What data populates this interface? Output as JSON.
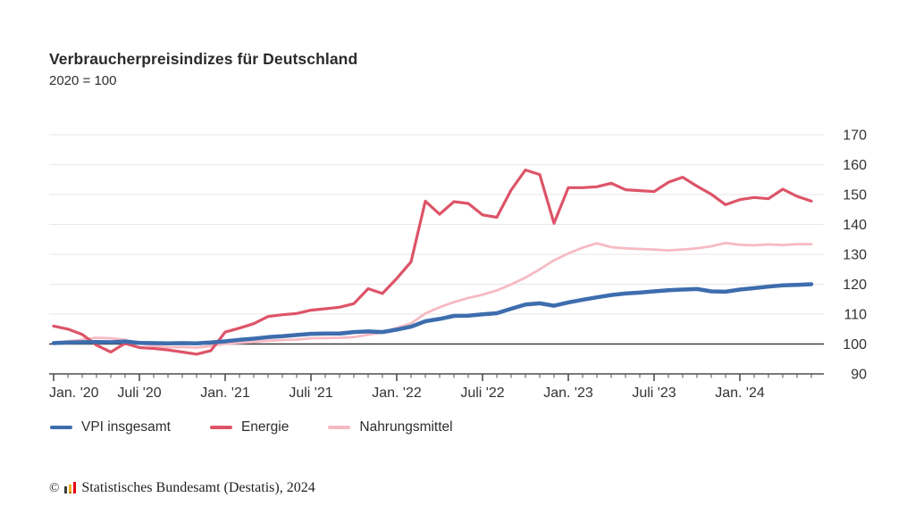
{
  "header": {
    "title": "Verbraucherpreisindizes für Deutschland",
    "subtitle": "2020 = 100"
  },
  "chart_data": {
    "type": "line",
    "title": "Verbraucherpreisindizes für Deutschland",
    "index_base": "2020 = 100",
    "x_unit": "month",
    "x_start": "2020-01",
    "x_end": "2024-06",
    "grid": true,
    "legend_position": "bottom",
    "ylim": [
      90,
      170
    ],
    "y_ticks": [
      90,
      100,
      110,
      120,
      130,
      140,
      150,
      160,
      170
    ],
    "baseline_value": 100,
    "x_tick_labels": [
      "Jan. '20",
      "Juli '20",
      "Jan. '21",
      "Juli '21",
      "Jan. '22",
      "Juli '22",
      "Jan. '23",
      "Juli '23",
      "Jan. '24"
    ],
    "x_tick_month_indices": [
      0,
      6,
      12,
      18,
      24,
      30,
      36,
      42,
      48
    ],
    "series": [
      {
        "name": "VPI insgesamt",
        "color": "#3d6dad",
        "stroke_width": 4.5,
        "values": [
          100.3,
          100.5,
          100.6,
          100.7,
          100.6,
          100.8,
          100.4,
          100.3,
          100.2,
          100.3,
          100.2,
          100.5,
          100.9,
          101.4,
          101.8,
          102.3,
          102.6,
          103.0,
          103.4,
          103.5,
          103.5,
          104.0,
          104.2,
          104.0,
          104.8,
          105.8,
          107.6,
          108.4,
          109.4,
          109.5,
          109.9,
          110.3,
          111.8,
          113.2,
          113.6,
          112.8,
          113.9,
          114.8,
          115.6,
          116.4,
          116.9,
          117.2,
          117.6,
          118.0,
          118.2,
          118.4,
          117.6,
          117.5,
          118.2,
          118.7,
          119.2,
          119.6,
          119.8,
          120.0
        ]
      },
      {
        "name": "Energie",
        "color": "#dd5468",
        "stroke_width": 3.2,
        "values": [
          106.0,
          105.0,
          103.2,
          99.6,
          97.3,
          100.2,
          98.8,
          98.5,
          98.0,
          97.3,
          96.6,
          97.8,
          104.0,
          105.3,
          106.8,
          109.2,
          109.8,
          110.2,
          111.3,
          111.8,
          112.3,
          113.5,
          118.5,
          116.9,
          121.9,
          127.5,
          147.8,
          143.4,
          147.6,
          147.0,
          143.2,
          142.4,
          151.5,
          158.2,
          156.7,
          140.4,
          152.3,
          152.3,
          152.6,
          153.8,
          151.6,
          151.3,
          151.0,
          154.1,
          155.8,
          152.8,
          150.1,
          146.6,
          148.3,
          149.0,
          148.6,
          151.8,
          149.4,
          147.8
        ]
      },
      {
        "name": "Nahrungsmittel",
        "color": "#f6bac3",
        "stroke_width": 2.8,
        "values": [
          100.4,
          100.9,
          101.4,
          102.1,
          101.9,
          101.4,
          100.2,
          99.4,
          98.9,
          99.0,
          98.8,
          99.3,
          100.1,
          100.4,
          100.7,
          101.1,
          101.3,
          101.5,
          101.9,
          102.0,
          102.1,
          102.3,
          103.1,
          103.8,
          105.4,
          106.9,
          110.2,
          112.3,
          114.0,
          115.4,
          116.5,
          117.9,
          119.9,
          122.2,
          125.0,
          128.0,
          130.3,
          132.2,
          133.7,
          132.4,
          132.0,
          131.8,
          131.6,
          131.3,
          131.6,
          132.0,
          132.7,
          133.8,
          133.2,
          133.0,
          133.3,
          133.1,
          133.4,
          133.4
        ]
      }
    ]
  },
  "footer": {
    "copyright_symbol": "©",
    "source_text": "Statistisches Bundesamt (Destatis), 2024"
  },
  "colors": {
    "grid": "#e7e7e7",
    "baseline": "#3a3a3a",
    "axis": "#4f4f4f",
    "tick_label": "#333333"
  }
}
